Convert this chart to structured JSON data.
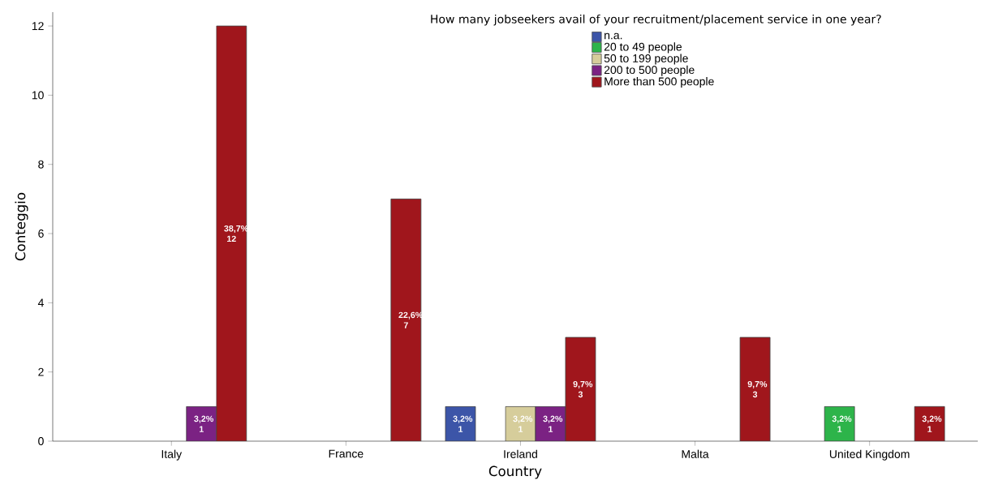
{
  "chart_data": {
    "type": "bar",
    "title": "How many jobseekers avail of your recruitment/placement service in one year?",
    "xlabel": "Country",
    "ylabel": "Conteggio",
    "categories": [
      "Italy",
      "France",
      "Ireland",
      "Malta",
      "United Kingdom"
    ],
    "series": [
      {
        "name": "n.a.",
        "color": "#3c55a8",
        "values": [
          null,
          null,
          1,
          null,
          null
        ],
        "value_labels": [
          null,
          null,
          "3,2% 1",
          null,
          null
        ]
      },
      {
        "name": "20 to 49 people",
        "color": "#2db44a",
        "values": [
          null,
          null,
          null,
          null,
          1
        ],
        "value_labels": [
          null,
          null,
          null,
          null,
          "3,2% 1"
        ]
      },
      {
        "name": "50 to 199 people",
        "color": "#d6cd9b",
        "values": [
          null,
          null,
          1,
          null,
          null
        ],
        "value_labels": [
          null,
          null,
          "3,2% 1",
          null,
          null
        ]
      },
      {
        "name": "200 to 500 people",
        "color": "#7b2283",
        "values": [
          1,
          null,
          1,
          null,
          null
        ],
        "value_labels": [
          "3,2% 1",
          null,
          "3,2% 1",
          null,
          null
        ]
      },
      {
        "name": "More than 500 people",
        "color": "#a0161c",
        "values": [
          12,
          7,
          3,
          3,
          1
        ],
        "value_labels": [
          "38,7% 12",
          "22,6% 7",
          "9,7% 3",
          "9,7% 3",
          "3,2% 1"
        ]
      }
    ],
    "ylim": [
      0,
      12.4
    ],
    "yticks": [
      0,
      2,
      4,
      6,
      8,
      10,
      12
    ],
    "legend": "top",
    "grid": false
  }
}
